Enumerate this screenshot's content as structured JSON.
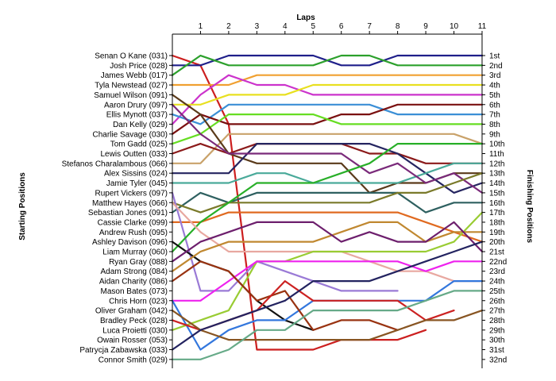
{
  "chart_data": {
    "type": "line",
    "title": "",
    "xlabel": "Laps",
    "ylabel_left": "Starting Positions",
    "ylabel_right": "Finishing Positions",
    "laps": [
      0,
      1,
      2,
      3,
      4,
      5,
      6,
      7,
      8,
      9,
      10,
      11
    ],
    "x_tick_labels": [
      "1",
      "2",
      "3",
      "4",
      "5",
      "6",
      "7",
      "8",
      "9",
      "10",
      "11"
    ],
    "ylim": [
      1,
      32
    ],
    "grid": false,
    "drivers": [
      "Senan O Kane (031)",
      "Josh Price (028)",
      "James Webb (017)",
      "Tyla Newstead (027)",
      "Samuel Wilson (091)",
      "Aaron Drury (097)",
      "Ellis Mynott (037)",
      "Dan Kelly (029)",
      "Charlie Savage (030)",
      "Tom Gadd (025)",
      "Lewis Outten (033)",
      "Stefanos Charalambous (066)",
      "Alex Sissins (024)",
      "Jamie Tyler (045)",
      "Rupert Vickers (097)",
      "Matthew Hayes (066)",
      "Sebastian Jones (091)",
      "Cassie Clarke (099)",
      "Andrew Rush (095)",
      "Ashley Davison (096)",
      "Liam Murray (060)",
      "Ryan Gray (088)",
      "Adam Strong (084)",
      "Aidan Charity (086)",
      "Mason Bates (073)",
      "Chris Horn (023)",
      "Oliver Graham (042)",
      "Bradley Peck (028)",
      "Luca Proietti (030)",
      "Owain Rosser (053)",
      "Patrycja Zabawska (033)",
      "Connor Smith (029)"
    ],
    "finishing_labels": [
      "1st",
      "2nd",
      "3rd",
      "4th",
      "5th",
      "6th",
      "7th",
      "8th",
      "9th",
      "10th",
      "11th",
      "12th",
      "13th",
      "14th",
      "15th",
      "16th",
      "17th",
      "18th",
      "19th",
      "20th",
      "21st",
      "22nd",
      "23rd",
      "24th",
      "25th",
      "26th",
      "27th",
      "28th",
      "29th",
      "30th",
      "31st",
      "32nd"
    ],
    "series": [
      {
        "start": 1,
        "color": "#cc1f1f",
        "positions": [
          1,
          2,
          8,
          31,
          31,
          31,
          30,
          30,
          30,
          29,
          null,
          null
        ]
      },
      {
        "start": 2,
        "color": "#1f1f8a",
        "positions": [
          2,
          2,
          1,
          1,
          1,
          1,
          2,
          2,
          1,
          1,
          1,
          1
        ]
      },
      {
        "start": 3,
        "color": "#2ca02c",
        "positions": [
          3,
          1,
          2,
          2,
          2,
          2,
          1,
          1,
          2,
          2,
          2,
          2
        ]
      },
      {
        "start": 4,
        "color": "#f0a030",
        "positions": [
          4,
          4,
          4,
          3,
          3,
          3,
          3,
          3,
          3,
          3,
          3,
          3
        ]
      },
      {
        "start": 5,
        "color": "#cc33cc",
        "positions": [
          8,
          5,
          3,
          4,
          4,
          5,
          5,
          5,
          5,
          5,
          5,
          5
        ]
      },
      {
        "start": 6,
        "color": "#e8e020",
        "positions": [
          6,
          6,
          5,
          5,
          5,
          4,
          4,
          4,
          4,
          4,
          4,
          4
        ]
      },
      {
        "start": 7,
        "color": "#3b8fd6",
        "positions": [
          7,
          8,
          6,
          6,
          6,
          6,
          6,
          6,
          7,
          7,
          7,
          7
        ]
      },
      {
        "start": 8,
        "color": "#7a1010",
        "positions": [
          9,
          7,
          8,
          8,
          8,
          8,
          7,
          7,
          6,
          6,
          6,
          6
        ]
      },
      {
        "start": 9,
        "color": "#66dd22",
        "positions": [
          10,
          9,
          7,
          7,
          7,
          7,
          8,
          8,
          8,
          8,
          8,
          8
        ]
      },
      {
        "start": 10,
        "color": "#c9a26a",
        "positions": [
          12,
          12,
          9,
          9,
          9,
          9,
          9,
          9,
          9,
          9,
          9,
          10
        ]
      },
      {
        "start": 11,
        "color": "#8b1a1a",
        "positions": [
          11,
          10,
          11,
          10,
          10,
          10,
          10,
          11,
          11,
          12,
          12,
          12
        ]
      },
      {
        "start": 12,
        "color": "#5a3a1a",
        "positions": [
          5,
          7,
          11,
          12,
          12,
          12,
          12,
          15,
          14,
          14,
          13,
          13
        ]
      },
      {
        "start": 13,
        "color": "#252560",
        "positions": [
          13,
          13,
          13,
          10,
          10,
          10,
          10,
          10,
          11,
          13,
          15,
          14
        ]
      },
      {
        "start": 14,
        "color": "#4aaa9a",
        "positions": [
          14,
          14,
          14,
          13,
          13,
          14,
          14,
          14,
          14,
          13,
          12,
          12
        ]
      },
      {
        "start": 15,
        "color": "#7a2a7a",
        "positions": [
          6,
          9,
          11,
          11,
          11,
          11,
          11,
          13,
          12,
          14,
          13,
          15
        ]
      },
      {
        "start": 16,
        "color": "#2e6060",
        "positions": [
          17,
          15,
          16,
          15,
          15,
          15,
          15,
          15,
          15,
          17,
          16,
          16
        ]
      },
      {
        "start": 17,
        "color": "#7a7a2a",
        "positions": [
          16,
          17,
          16,
          16,
          16,
          16,
          16,
          16,
          15,
          15,
          14,
          13
        ]
      },
      {
        "start": 18,
        "color": "#e06a20",
        "positions": [
          18,
          18,
          17,
          17,
          17,
          17,
          17,
          17,
          17,
          18,
          19,
          20
        ]
      },
      {
        "start": 19,
        "color": "#9a7ad6",
        "positions": [
          15,
          25,
          25,
          22,
          23,
          24,
          25,
          25,
          25,
          null,
          null,
          null
        ]
      },
      {
        "start": 20,
        "color": "#28af28",
        "positions": [
          21,
          18,
          16,
          14,
          14,
          14,
          13,
          12,
          10,
          10,
          10,
          10
        ]
      },
      {
        "start": 21,
        "color": "#e8a8a0",
        "positions": [
          16,
          19,
          21,
          21,
          21,
          21,
          21,
          22,
          23,
          23,
          24,
          24
        ]
      },
      {
        "start": 22,
        "color": "#111111",
        "positions": [
          20,
          22,
          23,
          26,
          28,
          29,
          null,
          null,
          null,
          null,
          null,
          null
        ]
      },
      {
        "start": 23,
        "color": "#99cc33",
        "positions": [
          29,
          28,
          27,
          22,
          22,
          21,
          21,
          21,
          21,
          21,
          20,
          17
        ]
      },
      {
        "start": 24,
        "color": "#c08830",
        "positions": [
          23,
          21,
          20,
          20,
          20,
          20,
          19,
          18,
          18,
          20,
          19,
          19
        ]
      },
      {
        "start": 25,
        "color": "#6d1f6d",
        "positions": [
          22,
          20,
          19,
          18,
          18,
          18,
          20,
          19,
          20,
          20,
          18,
          21
        ]
      },
      {
        "start": 26,
        "color": "#ee22ee",
        "positions": [
          26,
          26,
          24,
          22,
          22,
          22,
          22,
          22,
          22,
          23,
          22,
          22
        ]
      },
      {
        "start": 27,
        "color": "#3377dd",
        "positions": [
          26,
          31,
          29,
          28,
          28,
          26,
          26,
          26,
          26,
          26,
          24,
          24
        ]
      },
      {
        "start": 28,
        "color": "#993311",
        "positions": [
          24,
          22,
          23,
          26,
          25,
          29,
          28,
          28,
          29,
          null,
          null,
          null
        ]
      },
      {
        "start": 29,
        "color": "#cc2222",
        "positions": [
          28,
          29,
          28,
          27,
          24,
          26,
          26,
          26,
          26,
          28,
          27,
          null
        ]
      },
      {
        "start": 30,
        "color": "#885522",
        "positions": [
          27,
          29,
          30,
          30,
          30,
          30,
          30,
          30,
          29,
          28,
          28,
          27
        ]
      },
      {
        "start": 31,
        "color": "#232360",
        "positions": [
          31,
          29,
          28,
          27,
          26,
          24,
          24,
          24,
          23,
          22,
          21,
          20
        ]
      },
      {
        "start": 32,
        "color": "#66aa88",
        "positions": [
          32,
          32,
          31,
          29,
          29,
          27,
          27,
          27,
          27,
          26,
          25,
          25
        ]
      }
    ]
  }
}
